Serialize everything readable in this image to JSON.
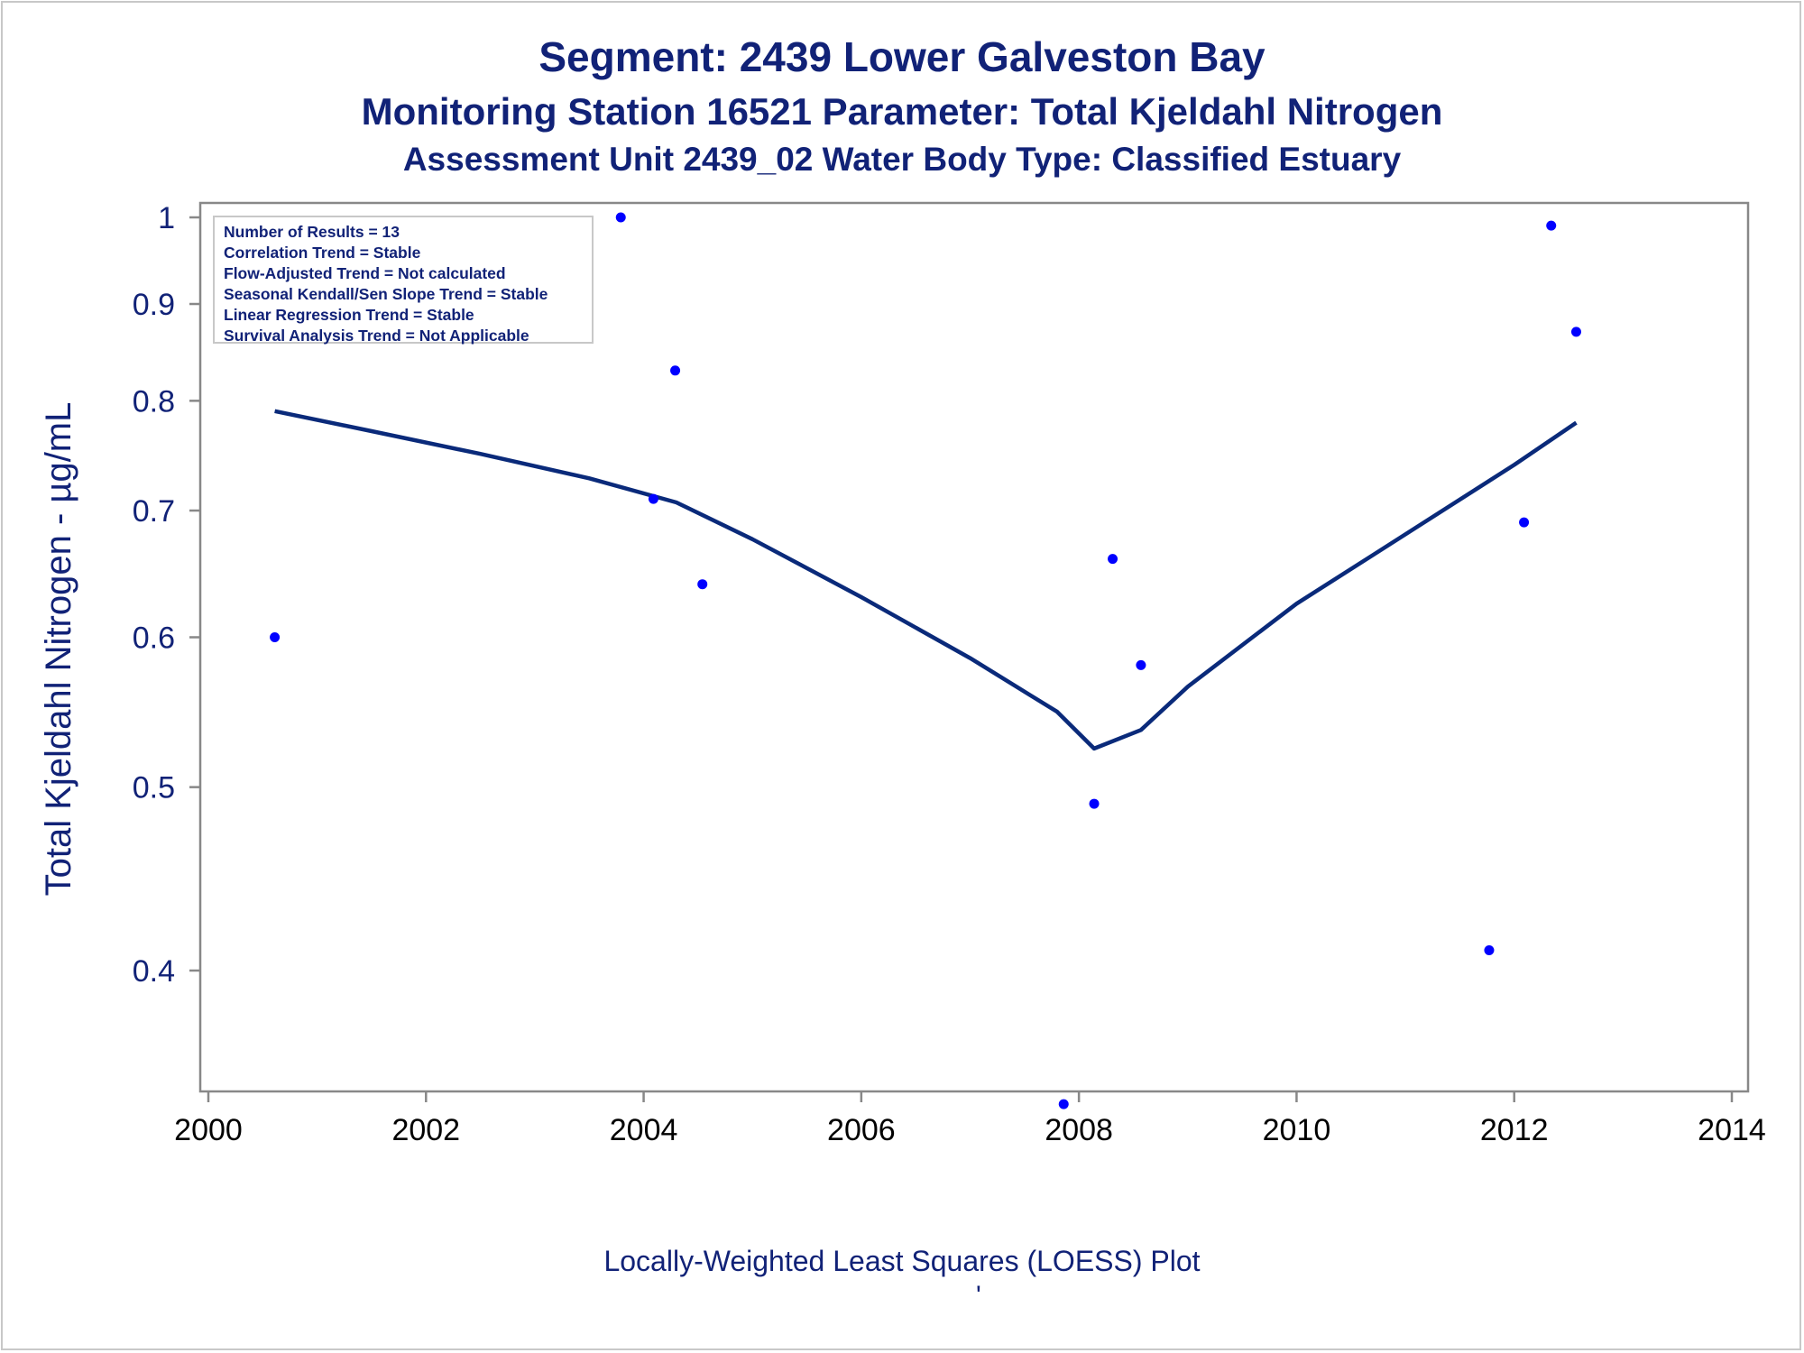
{
  "titles": {
    "line1": "Segment: 2439  Lower Galveston Bay",
    "line2": "Monitoring Station 16521 Parameter: Total Kjeldahl Nitrogen",
    "line3": "Assessment Unit 2439_02   Water Body Type: Classified Estuary"
  },
  "stats_box": {
    "lines": [
      "Number of Results = 13",
      "Correlation Trend = Stable",
      "Flow-Adjusted Trend = Not calculated",
      "Seasonal Kendall/Sen Slope Trend = Stable",
      "Linear Regression Trend = Stable",
      "Survival Analysis Trend = Not Applicable"
    ]
  },
  "footer": {
    "caption": "Locally-Weighted Least Squares (LOESS) Plot",
    "mark": "'"
  },
  "colors": {
    "title": "#112277",
    "points": "#0000ff",
    "loess": "#0a2a7a",
    "axis": "#888888"
  },
  "chart_data": {
    "type": "scatter",
    "xlabel": "",
    "ylabel": "Total Kjeldahl Nitrogen -  µg/mL",
    "y_scale": "log",
    "xlim": [
      2000,
      2014
    ],
    "ylim": [
      0.335,
      1.01
    ],
    "x_ticks": [
      2000,
      2002,
      2004,
      2006,
      2008,
      2010,
      2012,
      2014
    ],
    "y_ticks": [
      0.4,
      0.5,
      0.6,
      0.7,
      0.8,
      0.9,
      1
    ],
    "y_tick_labels": [
      "0.4",
      "0.5",
      "0.6",
      "0.7",
      "0.8",
      "0.9",
      "1"
    ],
    "grid": false,
    "series": [
      {
        "type": "scatter",
        "points": [
          {
            "x": 2000.61,
            "y": 0.6
          },
          {
            "x": 2003.79,
            "y": 1.0
          },
          {
            "x": 2004.09,
            "y": 0.71
          },
          {
            "x": 2004.29,
            "y": 0.83
          },
          {
            "x": 2004.54,
            "y": 0.64
          },
          {
            "x": 2007.86,
            "y": 0.34
          },
          {
            "x": 2008.14,
            "y": 0.49
          },
          {
            "x": 2008.31,
            "y": 0.66
          },
          {
            "x": 2008.57,
            "y": 0.58
          },
          {
            "x": 2011.77,
            "y": 0.41
          },
          {
            "x": 2012.09,
            "y": 0.69
          },
          {
            "x": 2012.34,
            "y": 0.99
          },
          {
            "x": 2012.57,
            "y": 0.87
          }
        ]
      },
      {
        "type": "line",
        "points": [
          {
            "x": 2000.61,
            "y": 0.79
          },
          {
            "x": 2001.5,
            "y": 0.771
          },
          {
            "x": 2002.5,
            "y": 0.75
          },
          {
            "x": 2003.5,
            "y": 0.728
          },
          {
            "x": 2004.3,
            "y": 0.707
          },
          {
            "x": 2005.0,
            "y": 0.676
          },
          {
            "x": 2006.0,
            "y": 0.63
          },
          {
            "x": 2007.0,
            "y": 0.585
          },
          {
            "x": 2007.8,
            "y": 0.548
          },
          {
            "x": 2008.14,
            "y": 0.524
          },
          {
            "x": 2008.57,
            "y": 0.536
          },
          {
            "x": 2009.0,
            "y": 0.565
          },
          {
            "x": 2010.0,
            "y": 0.625
          },
          {
            "x": 2011.0,
            "y": 0.68
          },
          {
            "x": 2012.0,
            "y": 0.74
          },
          {
            "x": 2012.57,
            "y": 0.779
          }
        ]
      }
    ]
  }
}
